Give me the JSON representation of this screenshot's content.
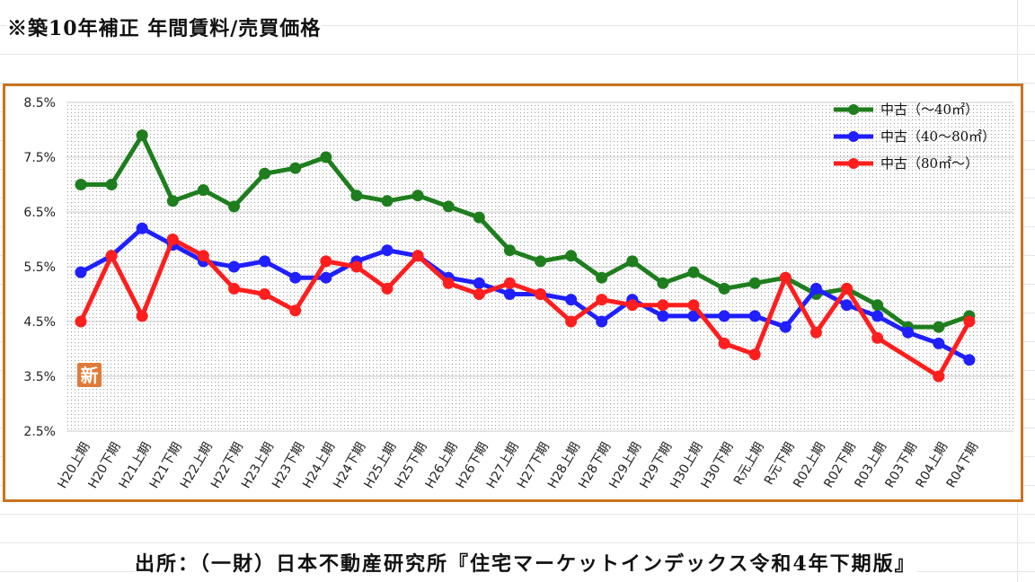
{
  "title": "※築10年補正 年間賃料/売買価格",
  "source": "出所：（一財）日本不動産研究所『住宅マーケットインデックス令和4年下期版』",
  "badge": "新",
  "colors": {
    "frame": "#c8741e",
    "green": "#1e7e1e",
    "blue": "#1f1fff",
    "red": "#ff1e1e",
    "badge": "#e07b39"
  },
  "chart_data": {
    "type": "line",
    "categories": [
      "H20上期",
      "H20下期",
      "H21上期",
      "H21下期",
      "H22上期",
      "H22下期",
      "H23上期",
      "H23下期",
      "H24上期",
      "H24下期",
      "H25上期",
      "H25下期",
      "H26上期",
      "H26下期",
      "H27上期",
      "H27下期",
      "H28上期",
      "H28下期",
      "H29上期",
      "H29下期",
      "H30上期",
      "H30下期",
      "R元上期",
      "R元下期",
      "R02上期",
      "R02下期",
      "R03上期",
      "R03下期",
      "R04上期",
      "R04下期"
    ],
    "y_ticks": [
      "8.5%",
      "7.5%",
      "6.5%",
      "5.5%",
      "4.5%",
      "3.5%",
      "2.5%"
    ],
    "ylim": [
      2.5,
      8.5
    ],
    "grid": true,
    "legend_position": "top-right",
    "series": [
      {
        "name": "中古（～40㎡）",
        "color": "#1e7e1e",
        "values": [
          7.0,
          7.0,
          7.9,
          6.7,
          6.9,
          6.6,
          7.2,
          7.3,
          7.5,
          6.8,
          6.7,
          6.8,
          6.6,
          6.4,
          5.8,
          5.6,
          5.7,
          5.3,
          5.6,
          5.2,
          5.4,
          5.1,
          5.2,
          5.3,
          5.0,
          5.1,
          4.8,
          4.4,
          4.4,
          4.6
        ]
      },
      {
        "name": "中古（40～80㎡）",
        "color": "#1f1fff",
        "values": [
          5.4,
          5.7,
          6.2,
          5.9,
          5.6,
          5.5,
          5.6,
          5.3,
          5.3,
          5.6,
          5.8,
          5.7,
          5.3,
          5.2,
          5.0,
          5.0,
          4.9,
          4.5,
          4.9,
          4.6,
          4.6,
          4.6,
          4.6,
          4.4,
          5.1,
          4.8,
          4.6,
          4.3,
          4.1,
          3.8
        ]
      },
      {
        "name": "中古（80㎡～）",
        "color": "#ff1e1e",
        "values": [
          4.5,
          5.7,
          4.6,
          6.0,
          5.7,
          5.1,
          5.0,
          4.7,
          5.6,
          5.5,
          5.1,
          5.7,
          5.2,
          5.0,
          5.2,
          5.0,
          4.5,
          4.9,
          4.8,
          4.8,
          4.8,
          4.1,
          3.9,
          5.3,
          4.3,
          5.1,
          4.2,
          null,
          3.5,
          4.5
        ],
        "note": "R03下期 has no marker; line connects R03上期 to R04上期"
      }
    ]
  }
}
